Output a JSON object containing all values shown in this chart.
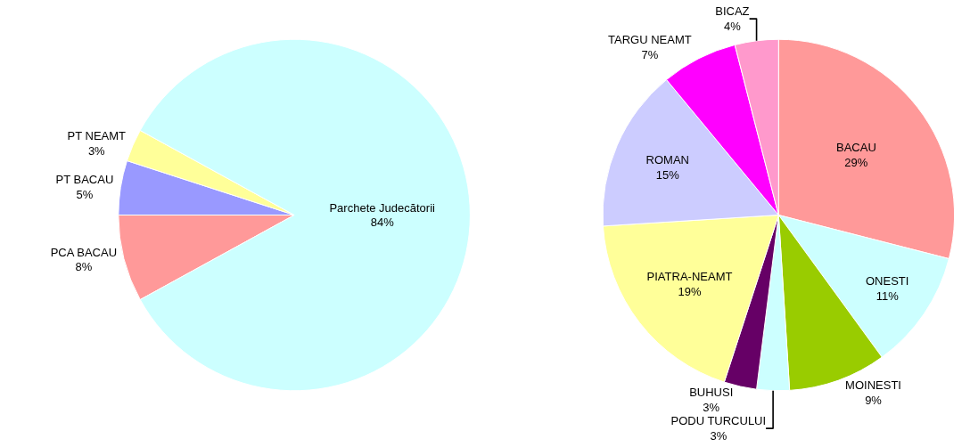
{
  "chart_data": [
    {
      "type": "pie",
      "categories": [
        "PCA BACAU",
        "PT BACAU",
        "PT NEAMT",
        "Parchete Judecătorii"
      ],
      "values": [
        8,
        5,
        3,
        84
      ],
      "colors": [
        "#ff9999",
        "#9999ff",
        "#ffff99",
        "#ccffff"
      ],
      "value_labels": [
        "8%",
        "5%",
        "3%",
        "84%"
      ]
    },
    {
      "type": "pie",
      "categories": [
        "BACAU",
        "ONESTI",
        "MOINESTI",
        "PODU TURCULUI",
        "BUHUSI",
        "PIATRA-NEAMT",
        "ROMAN",
        "TARGU NEAMT",
        "BICAZ"
      ],
      "values": [
        29,
        11,
        9,
        3,
        3,
        19,
        15,
        7,
        4
      ],
      "colors": [
        "#ff9999",
        "#ccffff",
        "#99cc00",
        "#ccffff",
        "#660066",
        "#ffff99",
        "#ccccff",
        "#ff00ff",
        "#ff99cc"
      ],
      "value_labels": [
        "29%",
        "11%",
        "9%",
        "3%",
        "3%",
        "19%",
        "15%",
        "7%",
        "4%"
      ]
    }
  ]
}
